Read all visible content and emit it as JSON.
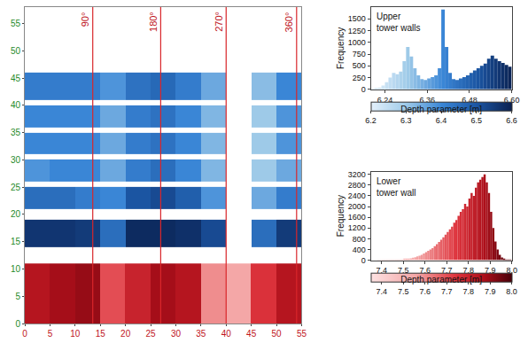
{
  "chart_data": [
    {
      "type": "heatmap",
      "xlim": [
        0,
        55
      ],
      "xticks": [
        0,
        5,
        10,
        15,
        20,
        25,
        30,
        35,
        40,
        45,
        50,
        55
      ],
      "ylim": [
        0,
        58
      ],
      "yticks": [
        0,
        5,
        10,
        15,
        20,
        25,
        30,
        35,
        40,
        45,
        50,
        55
      ],
      "annotations": [
        {
          "x": 13.5,
          "text": "90°"
        },
        {
          "x": 27,
          "text": "180°"
        },
        {
          "x": 40,
          "text": "270°"
        },
        {
          "x": 54,
          "text": "360°"
        }
      ],
      "series": [
        {
          "x": [
            0,
            5,
            10,
            15,
            20,
            25,
            30,
            35,
            40,
            45,
            50,
            55
          ],
          "y": [
            14,
            19,
            21,
            25,
            26,
            30,
            31,
            35,
            36,
            40,
            41,
            46
          ],
          "values": [
            [
              6.56,
              6.56,
              6.55,
              6.45,
              6.58,
              6.58,
              6.57,
              6.52,
              null,
              6.45,
              6.55
            ],
            [
              null,
              null,
              null,
              null,
              null,
              null,
              null,
              null,
              null,
              null,
              null
            ],
            [
              6.45,
              6.45,
              6.42,
              6.4,
              6.5,
              6.52,
              6.48,
              6.38,
              null,
              6.35,
              6.42
            ],
            [
              null,
              null,
              null,
              null,
              null,
              null,
              null,
              null,
              null,
              null,
              null
            ],
            [
              6.38,
              6.4,
              6.4,
              6.35,
              6.42,
              6.45,
              6.4,
              6.33,
              null,
              6.3,
              6.35
            ],
            [
              null,
              null,
              null,
              null,
              null,
              null,
              null,
              null,
              null,
              null,
              null
            ],
            [
              6.4,
              6.4,
              6.4,
              6.35,
              6.42,
              6.44,
              6.4,
              6.33,
              null,
              6.3,
              6.38
            ],
            [
              null,
              null,
              null,
              null,
              null,
              null,
              null,
              null,
              null,
              null,
              null
            ],
            [
              6.4,
              6.4,
              6.4,
              6.35,
              6.42,
              6.44,
              6.4,
              6.33,
              null,
              6.3,
              6.38
            ],
            [
              null,
              null,
              null,
              null,
              null,
              null,
              null,
              null,
              null,
              null,
              null
            ],
            [
              6.42,
              6.42,
              6.42,
              6.38,
              6.44,
              6.46,
              6.42,
              6.35,
              null,
              6.32,
              6.4
            ]
          ],
          "zlim": [
            6.2,
            6.6
          ],
          "zticks": [
            6.2,
            6.3,
            6.4,
            6.5,
            6.6
          ]
        },
        {
          "x": [
            0,
            5,
            10,
            15,
            20,
            25,
            30,
            35,
            40,
            45,
            50,
            55
          ],
          "y": [
            0,
            11
          ],
          "values": [
            [
              7.85,
              7.88,
              7.9,
              7.7,
              7.8,
              7.88,
              7.85,
              7.6,
              7.55,
              7.75,
              7.85
            ]
          ],
          "zlim": [
            7.35,
            8.0
          ],
          "zticks": [
            7.4,
            7.5,
            7.6,
            7.7,
            7.8,
            7.9,
            {
              "value": 8,
              "label": "8.0"
            }
          ]
        }
      ]
    },
    {
      "type": "histogram",
      "title": "Upper tower walls",
      "x_label": "Depth parameter [m]",
      "y_label": "Frequency",
      "bins": [
        6.2,
        6.21,
        6.22,
        6.23,
        6.24,
        6.25,
        6.26,
        6.27,
        6.28,
        6.29,
        6.3,
        6.31,
        6.32,
        6.33,
        6.34,
        6.35,
        6.36,
        6.37,
        6.38,
        6.39,
        6.4,
        6.41,
        6.42,
        6.43,
        6.44,
        6.45,
        6.46,
        6.47,
        6.48,
        6.49,
        6.5,
        6.51,
        6.52,
        6.53,
        6.54,
        6.55,
        6.56,
        6.57,
        6.58,
        6.59,
        6.6
      ],
      "values": [
        10,
        20,
        40,
        80,
        150,
        250,
        350,
        320,
        380,
        600,
        900,
        700,
        450,
        300,
        220,
        200,
        230,
        260,
        300,
        450,
        1700,
        900,
        350,
        220,
        200,
        230,
        260,
        300,
        350,
        400,
        450,
        500,
        550,
        650,
        720,
        650,
        600,
        560,
        520,
        480
      ],
      "xlim": [
        6.2,
        6.6
      ],
      "xticks": [
        6.24,
        6.36,
        6.48,
        {
          "value": 6.6,
          "label": "6.60"
        }
      ],
      "ylim": [
        0,
        1750
      ],
      "yticks": [
        0,
        250,
        500,
        750,
        1000,
        1250,
        1500
      ]
    },
    {
      "type": "histogram",
      "title": "Lower tower wall",
      "x_label": "Depth parameter [m]",
      "y_label": "Frequency",
      "bins": [
        7.35,
        7.36,
        7.37,
        7.38,
        7.39,
        7.4,
        7.41,
        7.42,
        7.43,
        7.44,
        7.45,
        7.46,
        7.47,
        7.48,
        7.49,
        7.5,
        7.51,
        7.52,
        7.53,
        7.54,
        7.55,
        7.56,
        7.57,
        7.58,
        7.59,
        7.6,
        7.61,
        7.62,
        7.63,
        7.64,
        7.65,
        7.66,
        7.67,
        7.68,
        7.69,
        7.7,
        7.71,
        7.72,
        7.73,
        7.74,
        7.75,
        7.76,
        7.77,
        7.78,
        7.79,
        7.8,
        7.81,
        7.82,
        7.83,
        7.84,
        7.85,
        7.86,
        7.87,
        7.88,
        7.89,
        7.9,
        7.91,
        7.92,
        7.93,
        7.94,
        7.95,
        7.96,
        7.97,
        7.98,
        7.99,
        8.0
      ],
      "values": [
        0,
        0,
        0,
        5,
        5,
        10,
        10,
        10,
        15,
        15,
        20,
        20,
        25,
        30,
        30,
        40,
        50,
        60,
        70,
        90,
        110,
        140,
        170,
        200,
        250,
        300,
        350,
        400,
        450,
        520,
        600,
        680,
        760,
        850,
        950,
        1050,
        1150,
        1250,
        1400,
        1500,
        1650,
        1800,
        1900,
        2100,
        2000,
        2300,
        2500,
        2400,
        2700,
        2900,
        3000,
        3100,
        3200,
        2900,
        2500,
        1800,
        1200,
        700,
        400,
        200,
        100,
        50,
        30,
        10,
        5
      ],
      "xlim": [
        7.35,
        8.0
      ],
      "xticks": [
        7.4,
        7.5,
        7.6,
        7.7,
        7.8,
        7.9,
        {
          "value": 8,
          "label": "8.0"
        }
      ],
      "ylim": [
        0,
        3300
      ],
      "yticks": [
        0,
        400,
        800,
        1200,
        1600,
        2000,
        2400,
        2800,
        3200
      ]
    }
  ]
}
